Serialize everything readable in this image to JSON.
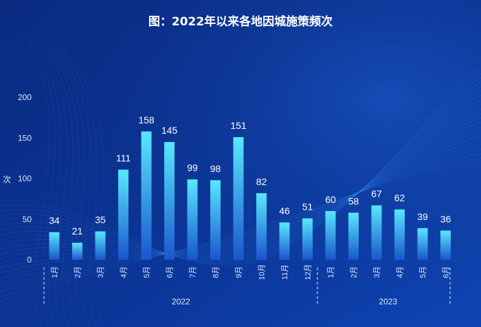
{
  "chart_data": {
    "type": "bar",
    "title": "图：2022年以来各地因城施策频次",
    "ylabel": "次",
    "xlabel": "",
    "ylim": [
      0,
      200
    ],
    "yticks": [
      0,
      50,
      100,
      150,
      200
    ],
    "grid": false,
    "categories": [
      "1月",
      "2月",
      "3月",
      "4月",
      "5月",
      "6月",
      "7月",
      "8月",
      "9月",
      "10月",
      "11月",
      "12月",
      "1月",
      "2月",
      "3月",
      "4月",
      "5月",
      "6月"
    ],
    "values": [
      34,
      21,
      35,
      111,
      158,
      145,
      99,
      98,
      151,
      82,
      46,
      51,
      60,
      58,
      67,
      62,
      39,
      36
    ],
    "groups": [
      {
        "label": "2022",
        "start": 0,
        "end": 11
      },
      {
        "label": "2023",
        "start": 12,
        "end": 17
      }
    ]
  },
  "colors": {
    "bg_top": "#0a2c86",
    "bg_bottom": "#0d3fa8",
    "bar_top": "#4fe3ff",
    "bar_bottom": "#1b5fd6",
    "text": "#ffffff",
    "axis_text": "#dce6ff",
    "wave": "#3f9cff"
  }
}
